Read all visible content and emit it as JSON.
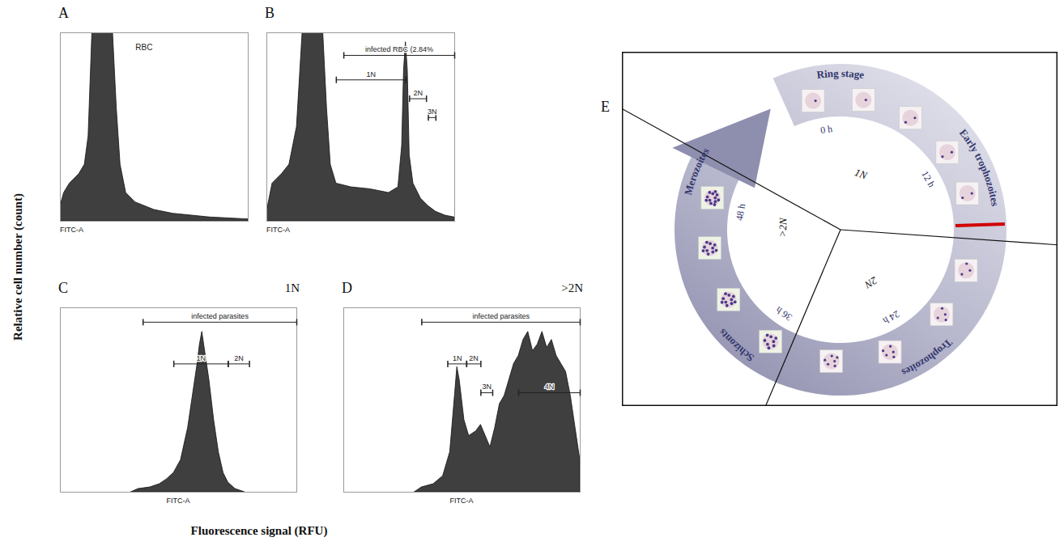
{
  "figure": {
    "y_label": "Relative cell number (count)",
    "x_label": "Fluorescence signal (RFU)"
  },
  "chart_data": [
    {
      "panel": "A",
      "type": "area",
      "x_label": "FITC-A",
      "color": "#3f3f3f",
      "tick_labels": false,
      "xlim": [
        0,
        100
      ],
      "ylim": [
        0,
        100
      ],
      "x": [
        0,
        2,
        5,
        10,
        13,
        15,
        17,
        28,
        30,
        32,
        35,
        40,
        50,
        60,
        70,
        80,
        100
      ],
      "values": [
        8,
        15,
        20,
        25,
        30,
        45,
        100,
        100,
        60,
        30,
        15,
        10,
        6,
        4,
        3,
        2,
        1
      ],
      "annotations": [
        {
          "text": "RBC",
          "x": 40,
          "y": 92
        }
      ],
      "gates": []
    },
    {
      "panel": "B",
      "type": "area",
      "x_label": "FITC-A",
      "color": "#3f3f3f",
      "tick_labels": false,
      "xlim": [
        0,
        100
      ],
      "ylim": [
        0,
        100
      ],
      "x": [
        0,
        3,
        8,
        12,
        16,
        19,
        30,
        32,
        34,
        37,
        45,
        55,
        65,
        70,
        72,
        73,
        74,
        75,
        76,
        78,
        82,
        86,
        90,
        95,
        100
      ],
      "values": [
        5,
        20,
        25,
        30,
        50,
        100,
        100,
        60,
        30,
        20,
        18,
        17,
        15,
        18,
        40,
        80,
        95,
        80,
        35,
        20,
        12,
        8,
        5,
        3,
        2
      ],
      "gates": [
        {
          "label": "infected RBC (2.84%",
          "range": [
            41,
            100
          ],
          "y": 88
        },
        {
          "label": "1N",
          "range": [
            37,
            74
          ],
          "y": 75
        },
        {
          "label": "2N",
          "range": [
            76,
            85
          ],
          "y": 65
        },
        {
          "label": "3N",
          "range": [
            86,
            90
          ],
          "y": 55
        }
      ]
    },
    {
      "panel": "C",
      "type": "area",
      "x_label": "FITC-A",
      "color": "#3f3f3f",
      "tick_labels": false,
      "annotation": "1N",
      "xlim": [
        0,
        100
      ],
      "ylim": [
        0,
        115
      ],
      "x": [
        30,
        33,
        38,
        42,
        45,
        48,
        51,
        54,
        56,
        58,
        59,
        60,
        61,
        63,
        65,
        67,
        69,
        71,
        74,
        78
      ],
      "values": [
        0,
        2,
        3,
        5,
        8,
        12,
        20,
        40,
        60,
        80,
        92,
        100,
        90,
        70,
        45,
        25,
        12,
        6,
        2,
        0
      ],
      "gates": [
        {
          "label": "infected parasites",
          "range": [
            35,
            100
          ],
          "y": 106
        },
        {
          "label": "1N",
          "range": [
            48,
            71
          ],
          "y": 80
        },
        {
          "label": "2N",
          "range": [
            71,
            80
          ],
          "y": 80
        }
      ]
    },
    {
      "panel": "D",
      "type": "area",
      "x_label": "FITC-A",
      "color": "#3f3f3f",
      "tick_labels": false,
      "annotation": ">2N",
      "xlim": [
        0,
        100
      ],
      "ylim": [
        0,
        115
      ],
      "x": [
        30,
        33,
        38,
        42,
        45,
        47,
        48,
        49,
        51,
        53,
        56,
        58,
        60,
        62,
        64,
        66,
        68,
        70,
        72,
        74,
        76,
        78,
        80,
        82,
        84,
        86,
        88,
        90,
        92,
        94,
        96,
        98,
        100
      ],
      "values": [
        0,
        3,
        5,
        10,
        25,
        60,
        78,
        70,
        45,
        35,
        38,
        42,
        35,
        28,
        40,
        55,
        60,
        70,
        80,
        85,
        95,
        100,
        88,
        92,
        100,
        90,
        95,
        85,
        80,
        75,
        60,
        40,
        20
      ],
      "gates": [
        {
          "label": "infected parasites",
          "range": [
            33,
            100
          ],
          "y": 106
        },
        {
          "label": "1N",
          "range": [
            44,
            52
          ],
          "y": 80
        },
        {
          "label": "2N",
          "range": [
            52,
            58
          ],
          "y": 80
        },
        {
          "label": "3N",
          "range": [
            58,
            63
          ],
          "y": 62
        },
        {
          "label": "4N",
          "range": [
            74,
            100
          ],
          "y": 62
        }
      ]
    }
  ],
  "diagram": {
    "panel": "E",
    "stages": [
      "Ring stage",
      "Early trophozoites",
      "Trophozoites",
      "Schizonts",
      "Merozoites"
    ],
    "times": [
      "0 h",
      "12 h",
      "24 h",
      "36 h",
      "48 h"
    ],
    "ploidy": [
      "1N",
      "2N",
      ">2N"
    ]
  }
}
